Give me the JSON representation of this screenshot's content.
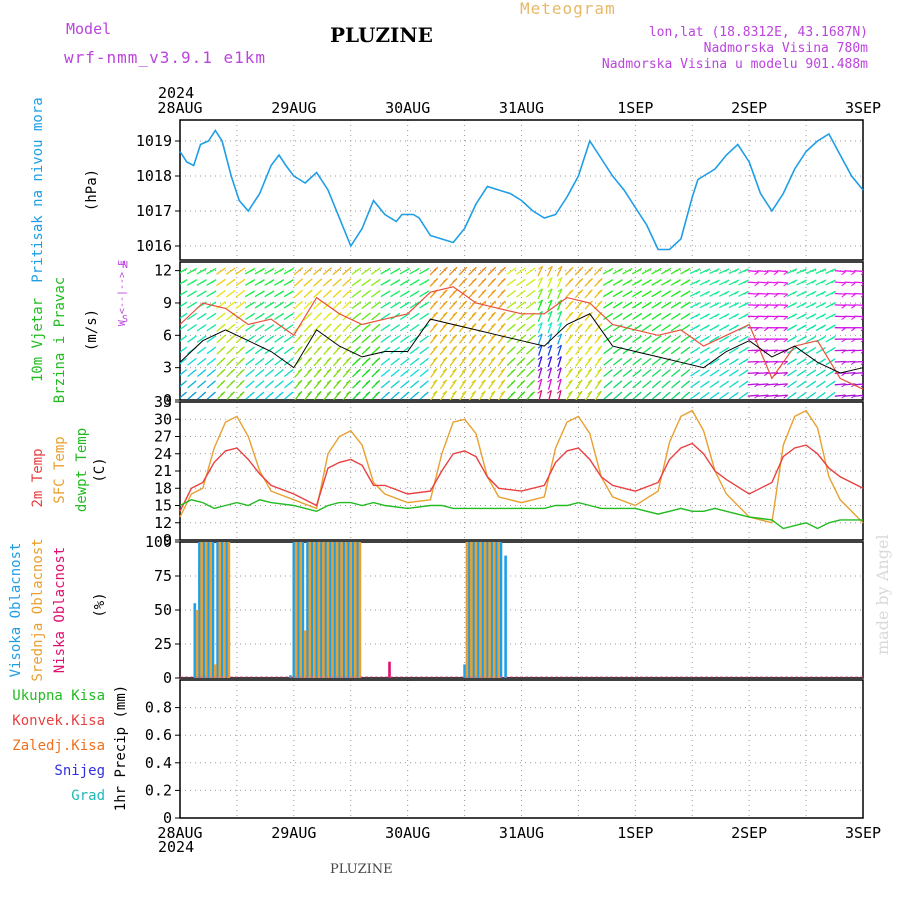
{
  "header": {
    "model_label": "Model",
    "model_name": "wrf-nmm_v3.9.1 e1km",
    "title": "PLUZINE",
    "meteogram_label": "Meteogram",
    "lonlat": "lon,lat (18.8312E, 43.1687N)",
    "elevation": "Nadmorska Visina 780m",
    "model_elevation": "Nadmorska Visina u modelu 901.488m",
    "year_top": "2024"
  },
  "footer": {
    "station": "PLUZINE",
    "year_bottom": "2024",
    "credit": "made by Angel"
  },
  "colors": {
    "pressure": "#1e9ee6",
    "wind_label": "#22bb22",
    "wind_dir_label": "#bb44dd",
    "temp2m": "#e84040",
    "sfc_temp": "#e8a030",
    "dewpoint": "#22bb22",
    "high_cloud": "#1e9ee6",
    "mid_cloud": "#e8a030",
    "low_cloud": "#e01070",
    "total_precip": "#22bb22",
    "conv_precip": "#e84040",
    "frozen_precip": "#f07020",
    "snow": "#3030e0",
    "hail": "#20b8b8",
    "header_purple": "#bb44dd",
    "header_orange": "#e8b86a"
  },
  "chart_data": [
    {
      "type": "line",
      "panel": "pressure",
      "ylabel": [
        "Pritisak na nivou mora",
        "(hPa)"
      ],
      "ylim": [
        1015.6,
        1019.6
      ],
      "yticks": [
        1016,
        1017,
        1018,
        1019
      ],
      "xticks": [
        "28AUG",
        "29AUG",
        "30AUG",
        "31AUG",
        "1SEP",
        "2SEP",
        "3SEP"
      ],
      "series": [
        {
          "x": [
            0,
            0.06,
            0.12,
            0.18,
            0.25,
            0.31,
            0.37,
            0.45,
            0.52,
            0.6,
            0.7,
            0.8,
            0.87,
            0.93,
            1.0,
            1.05,
            1.1,
            1.2,
            1.3,
            1.4,
            1.5,
            1.6,
            1.7,
            1.8,
            1.9,
            1.95,
            2.0,
            2.05,
            2.1,
            2.2,
            2.3,
            2.4,
            2.5,
            2.6,
            2.7,
            2.8,
            2.9,
            3.0,
            3.1,
            3.2,
            3.3,
            3.4,
            3.5,
            3.6,
            3.7,
            3.8,
            3.9,
            4.0,
            4.1,
            4.2,
            4.3,
            4.4,
            4.5,
            4.55,
            4.6,
            4.7,
            4.8,
            4.9,
            5.0,
            5.1,
            5.2,
            5.3,
            5.4,
            5.5,
            5.6,
            5.7,
            5.8,
            5.9,
            6.0
          ],
          "values": [
            1018.7,
            1018.4,
            1018.3,
            1018.9,
            1019.0,
            1019.3,
            1019.0,
            1018.0,
            1017.3,
            1017.0,
            1017.5,
            1018.3,
            1018.6,
            1018.3,
            1018.0,
            1017.9,
            1017.8,
            1018.1,
            1017.6,
            1016.8,
            1016.0,
            1016.5,
            1017.3,
            1016.9,
            1016.7,
            1016.9,
            1016.9,
            1016.9,
            1016.8,
            1016.3,
            1016.2,
            1016.1,
            1016.5,
            1017.2,
            1017.7,
            1017.6,
            1017.5,
            1017.3,
            1017.0,
            1016.8,
            1016.9,
            1017.4,
            1018.0,
            1019.0,
            1018.5,
            1018.0,
            1017.6,
            1017.1,
            1016.6,
            1015.9,
            1015.9,
            1016.2,
            1017.4,
            1017.9,
            1018.0,
            1018.2,
            1018.6,
            1018.9,
            1018.4,
            1017.5,
            1017.0,
            1017.5,
            1018.2,
            1018.7,
            1019.0,
            1019.2,
            1018.6,
            1018.0,
            1017.6
          ]
        }
      ]
    },
    {
      "type": "line",
      "panel": "wind",
      "ylabel": [
        "10m Vjetar",
        "Brzina i Pravac",
        "(m/s)"
      ],
      "direction_axis": [
        "N",
        "E",
        "S",
        "W"
      ],
      "ylim": [
        0,
        12.8
      ],
      "yticks": [
        0,
        3,
        6,
        9,
        12
      ],
      "series": [
        {
          "name": "wind speed",
          "x": [
            0,
            0.2,
            0.4,
            0.6,
            0.8,
            1.0,
            1.2,
            1.4,
            1.6,
            1.8,
            2.0,
            2.2,
            2.4,
            2.6,
            2.8,
            3.0,
            3.2,
            3.4,
            3.6,
            3.8,
            4.0,
            4.2,
            4.4,
            4.6,
            4.8,
            5.0,
            5.2,
            5.4,
            5.6,
            5.8,
            6.0
          ],
          "values": [
            3.5,
            5.5,
            6.5,
            5.5,
            4.5,
            3.0,
            6.5,
            5.0,
            4.0,
            4.5,
            4.5,
            7.5,
            7.0,
            6.5,
            6.0,
            5.5,
            5.0,
            7.0,
            8.0,
            5.0,
            4.5,
            4.0,
            3.5,
            3.0,
            4.5,
            5.5,
            4.0,
            5.0,
            3.5,
            2.5,
            3.0
          ]
        },
        {
          "name": "wind gust",
          "x": [
            0,
            0.2,
            0.4,
            0.6,
            0.8,
            1.0,
            1.2,
            1.4,
            1.6,
            1.8,
            2.0,
            2.2,
            2.4,
            2.6,
            2.8,
            3.0,
            3.2,
            3.4,
            3.6,
            3.8,
            4.0,
            4.2,
            4.4,
            4.6,
            4.8,
            5.0,
            5.2,
            5.4,
            5.6,
            5.8,
            6.0
          ],
          "values": [
            7.0,
            9.0,
            8.5,
            7.0,
            7.5,
            6.0,
            9.5,
            8.0,
            7.0,
            7.5,
            8.0,
            10.0,
            10.5,
            9.0,
            8.5,
            8.0,
            8.0,
            9.5,
            9.0,
            7.0,
            6.5,
            6.0,
            6.5,
            5.0,
            6.0,
            7.0,
            2.0,
            5.0,
            5.5,
            2.0,
            1.0
          ]
        }
      ]
    },
    {
      "type": "line",
      "panel": "temperature",
      "ylabel": [
        "2m Temp",
        "SFC Temp",
        "dewpt Temp",
        "(C)"
      ],
      "ylim": [
        9,
        33
      ],
      "yticks": [
        9,
        12,
        15,
        18,
        21,
        24,
        27,
        30,
        33
      ],
      "series": [
        {
          "name": "2m Temp",
          "x": [
            0,
            0.1,
            0.2,
            0.3,
            0.4,
            0.5,
            0.6,
            0.7,
            0.8,
            1.0,
            1.2,
            1.3,
            1.4,
            1.5,
            1.6,
            1.7,
            1.8,
            2.0,
            2.2,
            2.3,
            2.4,
            2.5,
            2.6,
            2.7,
            2.8,
            3.0,
            3.2,
            3.3,
            3.4,
            3.5,
            3.6,
            3.7,
            3.8,
            4.0,
            4.2,
            4.3,
            4.4,
            4.5,
            4.6,
            4.7,
            4.8,
            5.0,
            5.2,
            5.3,
            5.4,
            5.5,
            5.6,
            5.7,
            5.8,
            6.0
          ],
          "values": [
            14.0,
            18.0,
            19.0,
            22.5,
            24.5,
            25.0,
            23.0,
            20.5,
            18.5,
            17.0,
            15.0,
            21.5,
            22.5,
            23.0,
            22.0,
            18.5,
            18.5,
            17.0,
            17.5,
            21.0,
            24.0,
            24.5,
            23.5,
            20.0,
            18.0,
            17.5,
            18.5,
            22.5,
            24.5,
            25.0,
            23.0,
            20.0,
            18.5,
            17.5,
            19.0,
            23.0,
            25.0,
            25.8,
            24.0,
            21.0,
            19.5,
            17.0,
            19.0,
            23.5,
            25.0,
            25.5,
            24.0,
            21.5,
            20.0,
            18.0
          ]
        },
        {
          "name": "SFC Temp",
          "x": [
            0,
            0.1,
            0.2,
            0.3,
            0.4,
            0.5,
            0.6,
            0.7,
            0.8,
            1.0,
            1.2,
            1.3,
            1.4,
            1.5,
            1.6,
            1.7,
            1.8,
            2.0,
            2.2,
            2.3,
            2.4,
            2.5,
            2.6,
            2.7,
            2.8,
            3.0,
            3.2,
            3.3,
            3.4,
            3.5,
            3.6,
            3.7,
            3.8,
            4.0,
            4.2,
            4.3,
            4.4,
            4.5,
            4.6,
            4.7,
            4.8,
            5.0,
            5.2,
            5.3,
            5.4,
            5.5,
            5.6,
            5.7,
            5.8,
            6.0
          ],
          "values": [
            13.0,
            17.0,
            18.0,
            25.0,
            29.5,
            30.5,
            27.0,
            21.0,
            17.5,
            16.0,
            14.5,
            24.0,
            27.0,
            28.0,
            25.5,
            19.0,
            17.0,
            15.5,
            16.0,
            24.0,
            29.5,
            30.0,
            27.5,
            20.0,
            16.5,
            15.5,
            16.5,
            25.0,
            29.5,
            30.5,
            27.5,
            20.0,
            16.5,
            15.0,
            17.5,
            26.0,
            30.5,
            31.5,
            28.0,
            21.0,
            17.0,
            13.0,
            12.0,
            25.5,
            30.5,
            31.5,
            28.5,
            20.0,
            16.0,
            12.0
          ]
        },
        {
          "name": "dewpt Temp",
          "x": [
            0,
            0.1,
            0.2,
            0.3,
            0.4,
            0.5,
            0.6,
            0.7,
            0.8,
            1.0,
            1.2,
            1.3,
            1.4,
            1.5,
            1.6,
            1.7,
            1.8,
            2.0,
            2.2,
            2.3,
            2.4,
            2.5,
            2.6,
            2.7,
            2.8,
            3.0,
            3.2,
            3.3,
            3.4,
            3.5,
            3.6,
            3.7,
            3.8,
            4.0,
            4.2,
            4.3,
            4.4,
            4.5,
            4.6,
            4.7,
            4.8,
            5.0,
            5.2,
            5.3,
            5.4,
            5.5,
            5.6,
            5.7,
            5.8,
            6.0
          ],
          "values": [
            15.0,
            16.0,
            15.5,
            14.5,
            15.0,
            15.5,
            15.0,
            16.0,
            15.5,
            15.0,
            14.0,
            15.0,
            15.5,
            15.5,
            15.0,
            15.5,
            15.0,
            14.5,
            15.0,
            15.0,
            14.5,
            14.5,
            14.5,
            14.5,
            14.5,
            14.5,
            14.5,
            15.0,
            15.0,
            15.5,
            15.0,
            14.5,
            14.5,
            14.5,
            13.5,
            14.0,
            14.5,
            14.0,
            14.0,
            14.5,
            14.0,
            13.0,
            12.5,
            11.0,
            11.5,
            12.0,
            11.0,
            12.0,
            12.5,
            12.5
          ]
        }
      ]
    },
    {
      "type": "bar",
      "panel": "clouds",
      "ylabel": [
        "Visoka Oblacnost",
        "Srednja Oblacnost",
        "Niska Oblacnost",
        "(%)"
      ],
      "ylim": [
        0,
        100
      ],
      "yticks": [
        0,
        25,
        50,
        75,
        100
      ],
      "series": [
        {
          "name": "Visoka Oblacnost",
          "x": [
            0.13,
            0.17,
            0.21,
            0.25,
            0.29,
            0.33,
            0.37,
            0.41,
            0.97,
            1.0,
            1.04,
            1.08,
            1.12,
            1.16,
            1.2,
            1.24,
            1.28,
            1.32,
            1.36,
            1.4,
            1.44,
            1.48,
            1.52,
            1.56,
            2.5,
            2.54,
            2.58,
            2.62,
            2.66,
            2.7,
            2.74,
            2.78,
            2.82,
            2.86
          ],
          "values": [
            55,
            100,
            100,
            100,
            100,
            100,
            100,
            100,
            2,
            100,
            100,
            100,
            100,
            100,
            100,
            100,
            100,
            100,
            100,
            100,
            100,
            100,
            100,
            100,
            10,
            100,
            100,
            100,
            100,
            100,
            100,
            100,
            100,
            90
          ]
        },
        {
          "name": "Srednja Oblacnost",
          "x": [
            0.15,
            0.19,
            0.23,
            0.27,
            0.31,
            0.35,
            0.39,
            0.43,
            1.02,
            1.06,
            1.1,
            1.14,
            1.18,
            1.22,
            1.26,
            1.3,
            1.34,
            1.38,
            1.42,
            1.46,
            1.5,
            1.54,
            1.58,
            2.52,
            2.56,
            2.6,
            2.64,
            2.68,
            2.72,
            2.76,
            2.8
          ],
          "values": [
            50,
            100,
            100,
            100,
            10,
            100,
            100,
            100,
            100,
            100,
            35,
            100,
            100,
            100,
            100,
            100,
            100,
            100,
            100,
            100,
            100,
            100,
            100,
            100,
            100,
            100,
            100,
            100,
            100,
            100,
            100
          ]
        },
        {
          "name": "Niska Oblacnost",
          "x": [
            1.84
          ],
          "values": [
            12
          ]
        }
      ]
    },
    {
      "type": "bar",
      "panel": "precip",
      "ylabel": [
        "1hr Precip (mm)"
      ],
      "legend": [
        "Ukupna Kisa",
        "Konvek.Kisa",
        "Zaledj.Kisa",
        "Snijeg",
        "Grad"
      ],
      "ylim": [
        0,
        1.0
      ],
      "yticks": [
        0,
        0.2,
        0.4,
        0.6,
        0.8
      ],
      "ytick_labels": [
        "0",
        "0.2",
        "0.4",
        "0.6",
        "0.8"
      ],
      "series": []
    }
  ]
}
